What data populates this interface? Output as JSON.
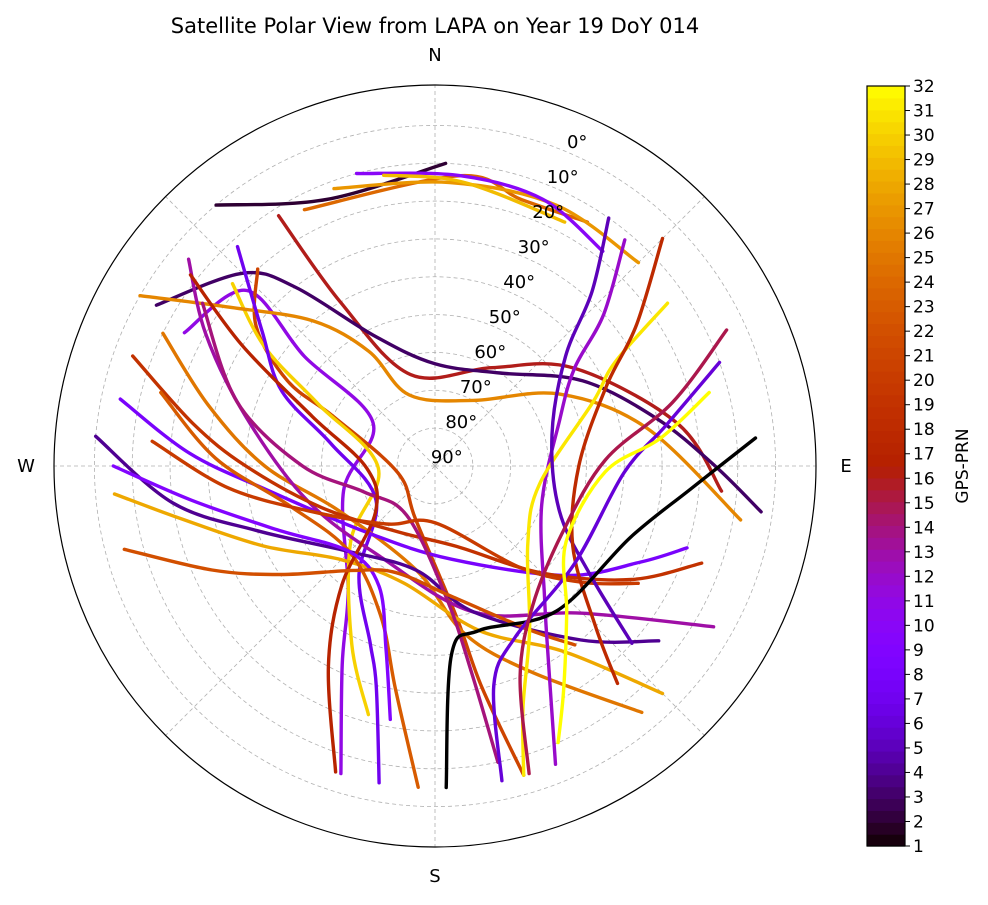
{
  "chart_data": {
    "type": "polar-skyplot",
    "title": "Satellite Polar View from LAPA on Year 19 DoY 014",
    "directions": {
      "north": "N",
      "east": "E",
      "south": "S",
      "west": "W"
    },
    "radial_axis": {
      "quantity": "elevation",
      "range_deg": [
        0,
        90
      ],
      "tick_labels": [
        "0°",
        "10°",
        "20°",
        "30°",
        "40°",
        "50°",
        "60°",
        "70°",
        "80°",
        "90°"
      ],
      "grid": true
    },
    "colorbar": {
      "label": "GPS-PRN",
      "colormap": "gnuplot",
      "range": [
        1,
        32
      ],
      "tick_labels": [
        "1",
        "2",
        "3",
        "4",
        "5",
        "6",
        "7",
        "8",
        "9",
        "10",
        "11",
        "12",
        "13",
        "14",
        "15",
        "16",
        "17",
        "18",
        "19",
        "20",
        "21",
        "22",
        "23",
        "24",
        "25",
        "26",
        "27",
        "28",
        "29",
        "30",
        "31",
        "32"
      ]
    },
    "tracks": [
      {
        "prn": 2,
        "points": [
          [
            320,
            0
          ],
          [
            338,
            14
          ],
          [
            2,
            10
          ]
        ]
      },
      {
        "prn": 24,
        "points": [
          [
            333,
            14
          ],
          [
            5,
            13
          ],
          [
            18,
            16
          ],
          [
            32,
            14
          ]
        ]
      },
      {
        "prn": 27,
        "points": [
          [
            340,
            12
          ],
          [
            3,
            15
          ],
          [
            25,
            14
          ],
          [
            45,
            14
          ]
        ]
      },
      {
        "prn": 10,
        "points": [
          [
            345,
            10
          ],
          [
            5,
            13
          ],
          [
            22,
            14
          ],
          [
            38,
            18
          ]
        ]
      },
      {
        "prn": 29,
        "points": [
          [
            350,
            12
          ],
          [
            2,
            14
          ],
          [
            12,
            16
          ],
          [
            28,
            17
          ]
        ]
      },
      {
        "prn": 16,
        "points": [
          [
            328,
            12
          ],
          [
            330,
            40
          ],
          [
            345,
            65
          ],
          [
            30,
            60
          ],
          [
            55,
            45
          ],
          [
            80,
            25
          ],
          [
            95,
            14
          ]
        ]
      },
      {
        "prn": 11,
        "points": [
          [
            298,
            15
          ],
          [
            313,
            22
          ],
          [
            310,
            45
          ],
          [
            305,
            70
          ],
          [
            255,
            65
          ],
          [
            215,
            50
          ],
          [
            205,
            32
          ],
          [
            197,
            5
          ]
        ]
      },
      {
        "prn": 3,
        "points": [
          [
            300,
            5
          ],
          [
            315,
            18
          ],
          [
            322,
            30
          ],
          [
            335,
            52
          ],
          [
            0,
            63
          ],
          [
            35,
            60
          ],
          [
            60,
            45
          ],
          [
            78,
            30
          ],
          [
            90,
            16
          ],
          [
            98,
            3
          ]
        ]
      },
      {
        "prn": 21,
        "points": [
          [
            318,
            20
          ],
          [
            308,
            30
          ],
          [
            300,
            45
          ],
          [
            296,
            60
          ],
          [
            260,
            80
          ],
          [
            200,
            75
          ],
          [
            172,
            50
          ],
          [
            168,
            30
          ],
          [
            164,
            5
          ]
        ]
      },
      {
        "prn": 30,
        "points": [
          [
            312,
            18
          ],
          [
            305,
            35
          ],
          [
            298,
            55
          ],
          [
            268,
            75
          ],
          [
            228,
            60
          ],
          [
            205,
            38
          ],
          [
            195,
            22
          ]
        ]
      },
      {
        "prn": 26,
        "points": [
          [
            300,
            0
          ],
          [
            308,
            22
          ],
          [
            320,
            40
          ],
          [
            330,
            55
          ],
          [
            340,
            70
          ],
          [
            30,
            70
          ],
          [
            60,
            52
          ],
          [
            80,
            33
          ],
          [
            100,
            8
          ]
        ]
      },
      {
        "prn": 7,
        "points": [
          [
            318,
            12
          ],
          [
            308,
            32
          ],
          [
            296,
            45
          ],
          [
            282,
            62
          ],
          [
            240,
            72
          ],
          [
            215,
            55
          ],
          [
            200,
            40
          ],
          [
            195,
            30
          ],
          [
            190,
            5
          ]
        ]
      },
      {
        "prn": 25,
        "points": [
          [
            296,
            10
          ],
          [
            285,
            28
          ],
          [
            270,
            45
          ],
          [
            245,
            62
          ],
          [
            190,
            62
          ],
          [
            170,
            45
          ],
          [
            155,
            30
          ],
          [
            140,
            5
          ]
        ]
      },
      {
        "prn": 8,
        "points": [
          [
            282,
            5
          ],
          [
            273,
            25
          ],
          [
            262,
            45
          ],
          [
            225,
            65
          ],
          [
            170,
            65
          ],
          [
            130,
            45
          ],
          [
            115,
            30
          ],
          [
            108,
            20
          ]
        ]
      },
      {
        "prn": 13,
        "points": [
          [
            310,
            5
          ],
          [
            300,
            20
          ],
          [
            285,
            38
          ],
          [
            255,
            55
          ],
          [
            210,
            62
          ],
          [
            165,
            50
          ],
          [
            135,
            35
          ],
          [
            120,
            5
          ]
        ]
      },
      {
        "prn": 19,
        "points": [
          [
            290,
            5
          ],
          [
            280,
            25
          ],
          [
            270,
            40
          ],
          [
            250,
            58
          ],
          [
            210,
            70
          ],
          [
            165,
            68
          ],
          [
            135,
            50
          ],
          [
            120,
            30
          ],
          [
            110,
            15
          ]
        ]
      },
      {
        "prn": 4,
        "points": [
          [
            275,
            0
          ],
          [
            262,
            20
          ],
          [
            250,
            40
          ],
          [
            225,
            58
          ],
          [
            190,
            62
          ],
          [
            165,
            50
          ],
          [
            140,
            30
          ],
          [
            128,
            15
          ]
        ]
      },
      {
        "prn": 28,
        "points": [
          [
            265,
            5
          ],
          [
            258,
            22
          ],
          [
            245,
            40
          ],
          [
            225,
            55
          ],
          [
            195,
            58
          ],
          [
            165,
            45
          ],
          [
            145,
            30
          ],
          [
            135,
            5
          ]
        ]
      },
      {
        "prn": 23,
        "points": [
          [
            285,
            15
          ],
          [
            272,
            32
          ],
          [
            255,
            50
          ],
          [
            225,
            58
          ],
          [
            200,
            48
          ],
          [
            190,
            30
          ],
          [
            183,
            5
          ]
        ]
      },
      {
        "prn": 14,
        "points": [
          [
            305,
            15
          ],
          [
            288,
            35
          ],
          [
            270,
            55
          ],
          [
            250,
            70
          ],
          [
            210,
            75
          ],
          [
            175,
            55
          ],
          [
            170,
            35
          ],
          [
            168,
            10
          ]
        ]
      },
      {
        "prn": 17,
        "points": [
          [
            308,
            8
          ],
          [
            302,
            30
          ],
          [
            292,
            55
          ],
          [
            268,
            72
          ],
          [
            232,
            70
          ],
          [
            218,
            50
          ],
          [
            208,
            30
          ],
          [
            198,
            5
          ]
        ]
      },
      {
        "prn": 9,
        "points": [
          [
            270,
            5
          ],
          [
            262,
            25
          ],
          [
            248,
            45
          ],
          [
            225,
            58
          ],
          [
            205,
            55
          ],
          [
            195,
            40
          ],
          [
            190,
            22
          ]
        ]
      },
      {
        "prn": 22,
        "points": [
          [
            255,
            5
          ],
          [
            245,
            25
          ],
          [
            235,
            40
          ],
          [
            218,
            55
          ],
          [
            200,
            60
          ],
          [
            172,
            55
          ],
          [
            150,
            40
          ],
          [
            142,
            30
          ]
        ]
      },
      {
        "prn": 20,
        "points": [
          [
            275,
            15
          ],
          [
            264,
            35
          ],
          [
            250,
            55
          ],
          [
            220,
            70
          ],
          [
            180,
            75
          ],
          [
            140,
            55
          ],
          [
            128,
            40
          ],
          [
            120,
            28
          ]
        ]
      },
      {
        "prn": 12,
        "points": [
          [
            40,
            12
          ],
          [
            48,
            30
          ],
          [
            55,
            45
          ],
          [
            70,
            55
          ],
          [
            110,
            60
          ],
          [
            140,
            45
          ],
          [
            150,
            30
          ],
          [
            158,
            5
          ]
        ]
      },
      {
        "prn": 31,
        "points": [
          [
            55,
            15
          ],
          [
            60,
            35
          ],
          [
            68,
            45
          ],
          [
            100,
            62
          ],
          [
            130,
            58
          ],
          [
            150,
            40
          ],
          [
            160,
            22
          ],
          [
            164,
            5
          ]
        ]
      },
      {
        "prn": 5,
        "points": [
          [
            35,
            10
          ],
          [
            42,
            28
          ],
          [
            50,
            45
          ],
          [
            75,
            58
          ],
          [
            110,
            55
          ],
          [
            125,
            40
          ],
          [
            132,
            20
          ]
        ]
      },
      {
        "prn": 18,
        "points": [
          [
            45,
            5
          ],
          [
            55,
            25
          ],
          [
            65,
            40
          ],
          [
            90,
            52
          ],
          [
            120,
            48
          ],
          [
            135,
            30
          ],
          [
            140,
            15
          ]
        ]
      },
      {
        "prn": 1,
        "points": [
          [
            85,
            5
          ],
          [
            95,
            22
          ],
          [
            110,
            35
          ],
          [
            140,
            40
          ],
          [
            165,
            45
          ],
          [
            175,
            40
          ],
          [
            178,
            5
          ]
        ]
      },
      {
        "prn": 6,
        "points": [
          [
            70,
            10
          ],
          [
            80,
            28
          ],
          [
            92,
            40
          ],
          [
            125,
            45
          ],
          [
            155,
            40
          ],
          [
            165,
            30
          ],
          [
            168,
            5
          ]
        ]
      },
      {
        "prn": 15,
        "points": [
          [
            65,
            5
          ],
          [
            75,
            25
          ],
          [
            88,
            45
          ],
          [
            118,
            52
          ],
          [
            145,
            45
          ],
          [
            158,
            30
          ],
          [
            163,
            5
          ]
        ]
      },
      {
        "prn": 32,
        "points": [
          [
            75,
            15
          ],
          [
            83,
            30
          ],
          [
            92,
            45
          ],
          [
            120,
            50
          ],
          [
            138,
            38
          ],
          [
            150,
            22
          ],
          [
            156,
            10
          ]
        ]
      }
    ]
  }
}
